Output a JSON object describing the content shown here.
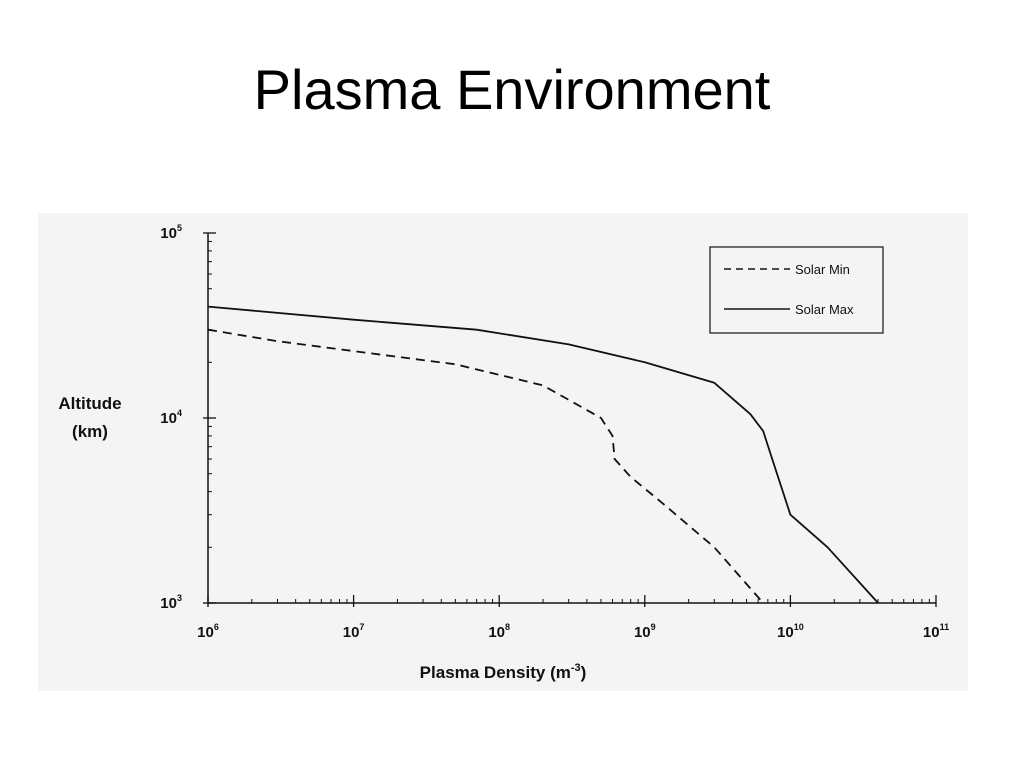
{
  "slide": {
    "title": "Plasma Environment"
  },
  "chart_data": {
    "type": "line",
    "title": "",
    "xlabel": "Plasma Density (m",
    "xlabel_sup": "-3",
    "xlabel_close": ")",
    "ylabel_line1": "Altitude",
    "ylabel_line2": "(km)",
    "x_scale": "log",
    "y_scale": "log",
    "xlim": [
      1000000,
      100000000000
    ],
    "ylim": [
      1000,
      100000
    ],
    "x_ticks": [
      {
        "base": "10",
        "exp": "6",
        "value": 1000000
      },
      {
        "base": "10",
        "exp": "7",
        "value": 10000000
      },
      {
        "base": "10",
        "exp": "8",
        "value": 100000000
      },
      {
        "base": "10",
        "exp": "9",
        "value": 1000000000
      },
      {
        "base": "10",
        "exp": "10",
        "value": 10000000000
      },
      {
        "base": "10",
        "exp": "11",
        "value": 100000000000
      }
    ],
    "y_ticks": [
      {
        "base": "10",
        "exp": "3",
        "value": 1000
      },
      {
        "base": "10",
        "exp": "4",
        "value": 10000
      },
      {
        "base": "10",
        "exp": "5",
        "value": 100000
      }
    ],
    "grid": false,
    "legend_position": "top-right",
    "series": [
      {
        "name": "Solar Min",
        "style": "dashed",
        "x": [
          1000000,
          3000000,
          10000000,
          50000000,
          200000000,
          500000000,
          600000000,
          620000000,
          800000000,
          1300000000,
          3000000000,
          6500000000
        ],
        "y": [
          30000,
          26000,
          23000,
          19500,
          15000,
          10000,
          8000,
          6000,
          4800,
          3500,
          2000,
          1000
        ]
      },
      {
        "name": "Solar Max",
        "style": "solid",
        "x": [
          1000000,
          10000000,
          70000000,
          300000000,
          1000000000,
          3000000000,
          5300000000,
          6500000000,
          7500000000,
          10000000000,
          18000000000,
          40000000000
        ],
        "y": [
          40000,
          34000,
          30000,
          25000,
          20000,
          15500,
          10500,
          8500,
          6000,
          3000,
          2000,
          1000
        ]
      }
    ]
  }
}
